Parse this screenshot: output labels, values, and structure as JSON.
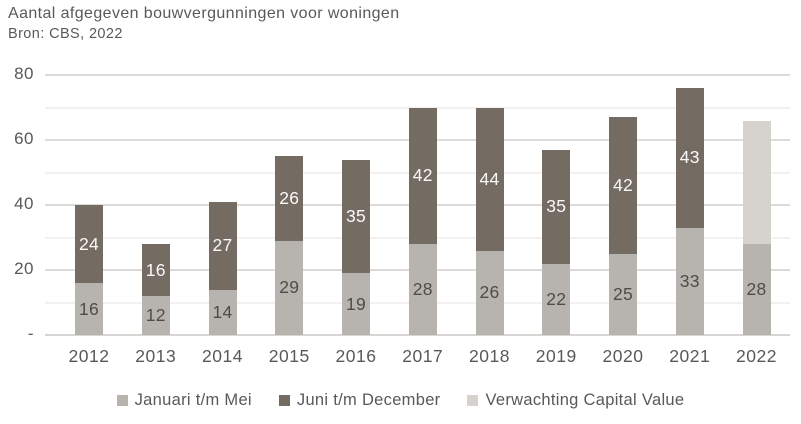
{
  "colors": {
    "jan": "#b7b4b0",
    "jun": "#746b62",
    "verw": "#d6d3ce",
    "grid_major": "#dcdbd9",
    "grid_minor": "#f2f1ef",
    "baseline": "#d8d6d3",
    "axis_text": "#595959",
    "label_dark": "#4f4b47",
    "label_light": "#fbfaf8"
  },
  "chart_data": {
    "type": "bar",
    "stacked": true,
    "title": "Aantal afgegeven bouwvergunningen voor woningen",
    "subtitle": "Bron: CBS, 2022",
    "categories": [
      "2012",
      "2013",
      "2014",
      "2015",
      "2016",
      "2017",
      "2018",
      "2019",
      "2020",
      "2021",
      "2022"
    ],
    "series": [
      {
        "name": "Januari t/m Mei",
        "key": "jan",
        "values": [
          16,
          12,
          14,
          29,
          19,
          28,
          26,
          22,
          25,
          33,
          28
        ],
        "labels_visible": true,
        "label_style": "dark"
      },
      {
        "name": "Juni t/m December",
        "key": "jun",
        "values": [
          24,
          16,
          27,
          26,
          35,
          42,
          44,
          35,
          42,
          43,
          null
        ],
        "labels_visible": true,
        "label_style": "light"
      },
      {
        "name": "Verwachting Capital Value",
        "key": "verw",
        "values": [
          null,
          null,
          null,
          null,
          null,
          null,
          null,
          null,
          null,
          null,
          38
        ],
        "labels_visible": false,
        "label_style": null
      }
    ],
    "y_axis": {
      "max": 80,
      "gridline_interval": 10,
      "ticks": [
        {
          "label": "80",
          "value": 80
        },
        {
          "label": "60",
          "value": 60
        },
        {
          "label": "40",
          "value": 40
        },
        {
          "label": "20",
          "value": 20
        },
        {
          "label": "-",
          "value": 0
        }
      ]
    },
    "legend": {
      "position": "bottom",
      "entries": [
        "Januari t/m Mei",
        "Juni t/m December",
        "Verwachting Capital Value"
      ]
    }
  }
}
